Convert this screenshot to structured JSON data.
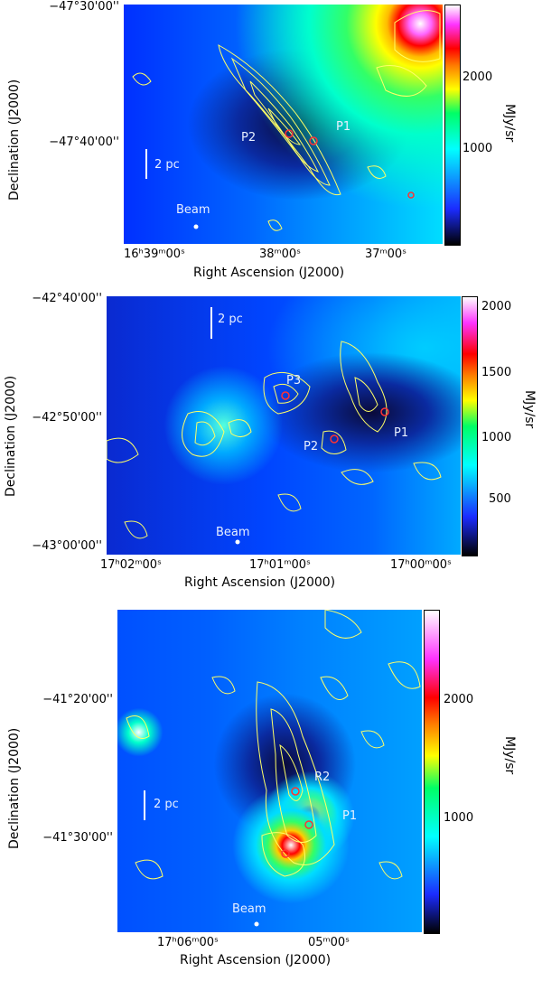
{
  "unit_label": "MJy/sr",
  "xaxis_label": "Right Ascension (J2000)",
  "yaxis_label": "Declination (J2000)",
  "scale_label": "2 pc",
  "beam_label": "Beam",
  "panels": [
    {
      "yticks": [
        "−47°30'00''",
        "−47°40'00''"
      ],
      "xticks": [
        "16ʰ39ᵐ00ˢ",
        "38ᵐ00ˢ",
        "37ᵐ00ˢ"
      ],
      "cbar_ticks": [
        "2000",
        "1000"
      ],
      "sources": [
        "P2",
        "P1"
      ]
    },
    {
      "yticks": [
        "−42°40'00''",
        "−42°50'00''",
        "−43°00'00''"
      ],
      "xticks": [
        "17ʰ02ᵐ00ˢ",
        "17ʰ01ᵐ00ˢ",
        "17ʰ00ᵐ00ˢ"
      ],
      "cbar_ticks": [
        "2000",
        "1500",
        "1000",
        "500"
      ],
      "sources": [
        "P3",
        "P2",
        "P1"
      ]
    },
    {
      "yticks": [
        "−41°20'00''",
        "−41°30'00''"
      ],
      "xticks": [
        "17ʰ06ᵐ00ˢ",
        "05ᵐ00ˢ"
      ],
      "cbar_ticks": [
        "2000",
        "1000"
      ],
      "sources": [
        "R2",
        "P1"
      ]
    }
  ],
  "colorbar_colors": [
    "#000000",
    "#1b2cff",
    "#00ffff",
    "#00ff66",
    "#ffff00",
    "#ff7a00",
    "#ff0000",
    "#ff33ff",
    "#ffffff"
  ]
}
